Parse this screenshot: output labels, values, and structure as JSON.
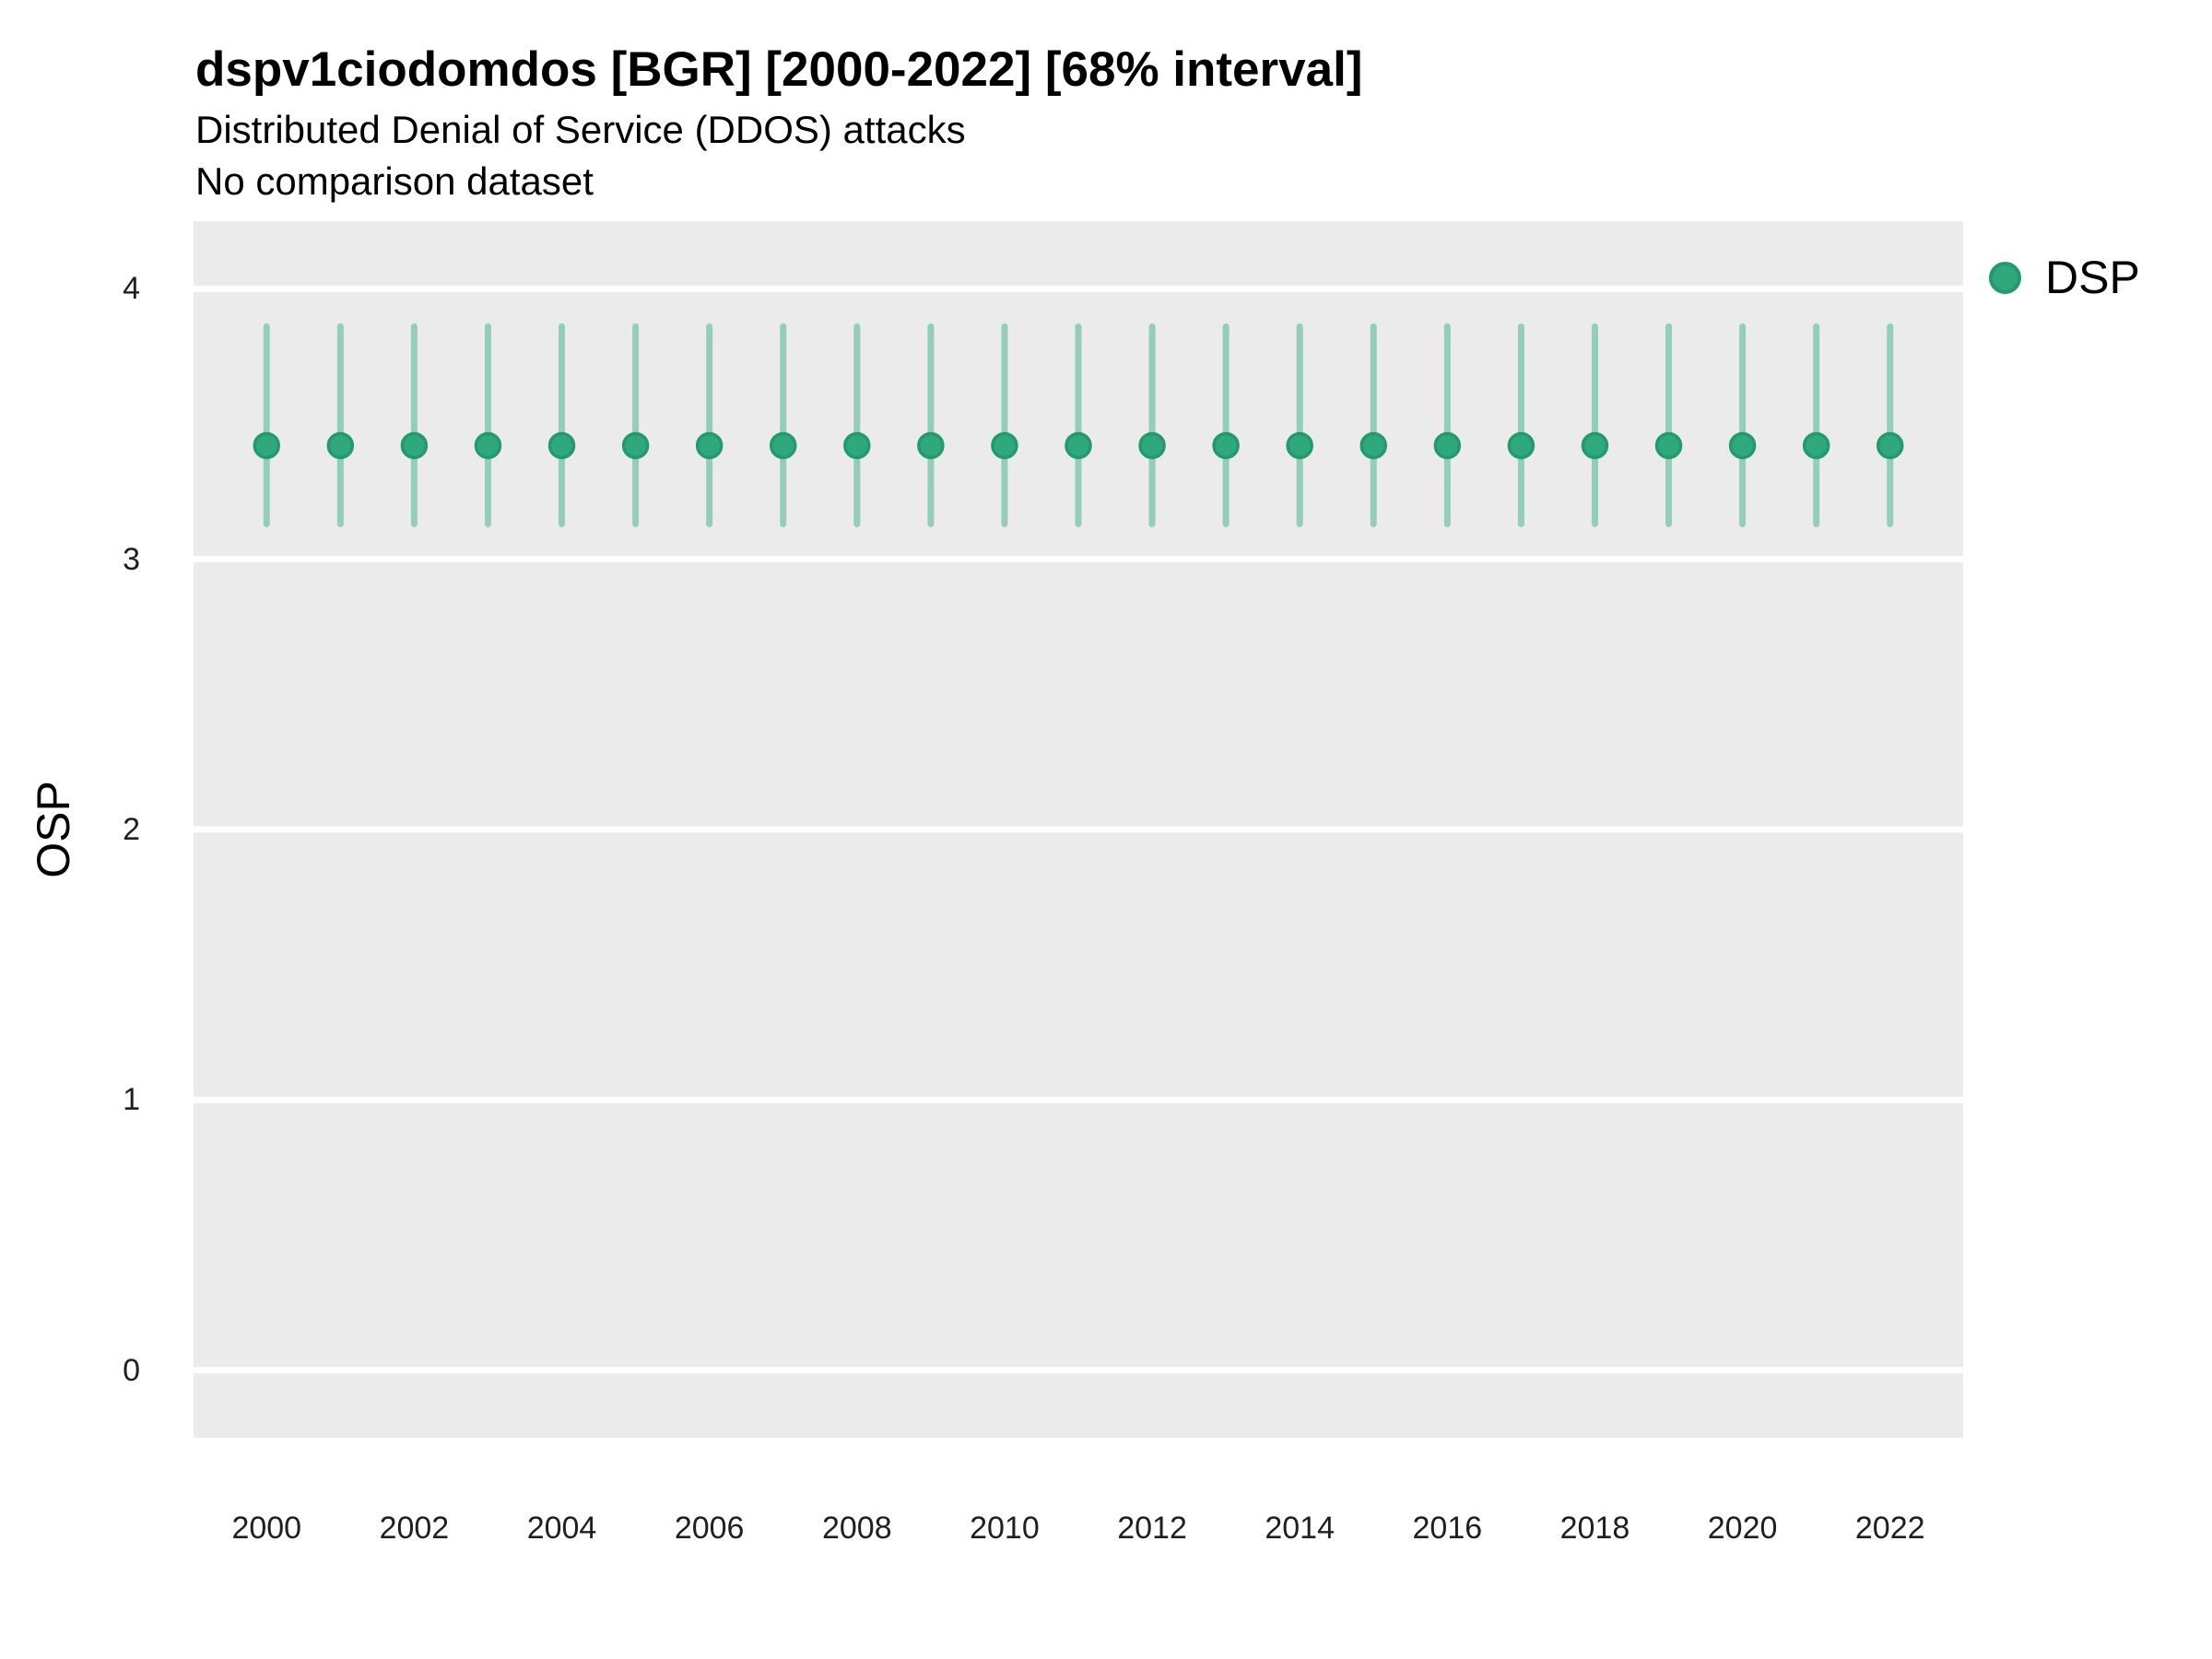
{
  "header": {
    "title": "dspv1ciodomdos [BGR] [2000-2022] [68% interval]",
    "subtitle": "Distributed Denial of Service (DDOS) attacks",
    "comparison_note": "No comparison dataset"
  },
  "legend": {
    "items": [
      {
        "label": "DSP",
        "color": "#2FA87D"
      }
    ]
  },
  "axes": {
    "y_label": "OSP",
    "x_label": ""
  },
  "chart_data": {
    "type": "scatter",
    "title": "dspv1ciodomdos [BGR] [2000-2022] [68% interval]",
    "subtitle": "Distributed Denial of Service (DDOS) attacks",
    "note": "No comparison dataset",
    "interval": "68%",
    "xlabel": "",
    "ylabel": "OSP",
    "x": [
      2000,
      2001,
      2002,
      2003,
      2004,
      2005,
      2006,
      2007,
      2008,
      2009,
      2010,
      2011,
      2012,
      2013,
      2014,
      2015,
      2016,
      2017,
      2018,
      2019,
      2020,
      2021,
      2022
    ],
    "series": [
      {
        "name": "DSP",
        "values": [
          3.42,
          3.42,
          3.42,
          3.42,
          3.42,
          3.42,
          3.42,
          3.42,
          3.42,
          3.42,
          3.42,
          3.42,
          3.42,
          3.42,
          3.42,
          3.42,
          3.42,
          3.42,
          3.42,
          3.42,
          3.42,
          3.42,
          3.42
        ],
        "interval_low": [
          3.13,
          3.13,
          3.13,
          3.13,
          3.13,
          3.13,
          3.13,
          3.13,
          3.13,
          3.13,
          3.13,
          3.13,
          3.13,
          3.13,
          3.13,
          3.13,
          3.13,
          3.13,
          3.13,
          3.13,
          3.13,
          3.13,
          3.13
        ],
        "interval_high": [
          3.86,
          3.86,
          3.86,
          3.86,
          3.86,
          3.86,
          3.86,
          3.86,
          3.86,
          3.86,
          3.86,
          3.86,
          3.86,
          3.86,
          3.86,
          3.86,
          3.86,
          3.86,
          3.86,
          3.86,
          3.86,
          3.86,
          3.86
        ]
      }
    ],
    "yticks": [
      0,
      1,
      2,
      3,
      4
    ],
    "xticks": [
      2000,
      2002,
      2004,
      2006,
      2008,
      2010,
      2012,
      2014,
      2016,
      2018,
      2020,
      2022
    ],
    "ylim": [
      -0.25,
      4.25
    ],
    "xlim": [
      1999.01,
      2022.99
    ],
    "grid": "horizontal-major-only",
    "legend_position": "right",
    "colors": {
      "panel_background": "#EBEBEB",
      "gridline": "#FFFFFF",
      "interval_bar": "rgba(43,168,122,0.45)",
      "point_fill": "#2FA87D",
      "point_stroke": "#239A6E",
      "text": "#000000",
      "tick_text": "#1f1f1f"
    }
  }
}
